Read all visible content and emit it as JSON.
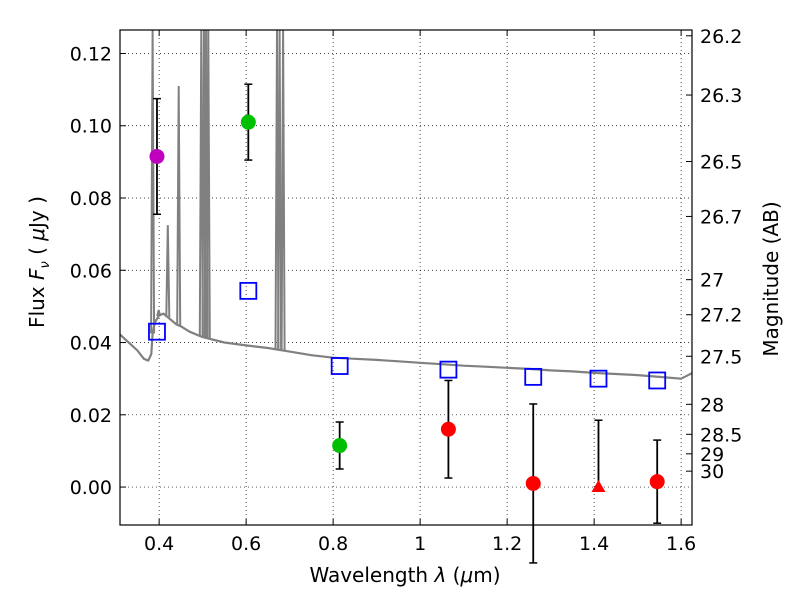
{
  "chart_data": {
    "type": "scatter",
    "title": "",
    "xlabel_prefix": "Wavelength  ",
    "xlabel_symbol": "λ",
    "xlabel_unit_open": " (",
    "xlabel_unit_mu": "μ",
    "xlabel_unit_close": "m)",
    "ylabel_prefix": "Flux  ",
    "ylabel_symbol": "F",
    "ylabel_subscript": "ν",
    "ylabel_unit_open": "  (  ",
    "ylabel_unit_mu": "μ",
    "ylabel_unit_close": "Jy  )",
    "y2label": "Magnitude (AB)",
    "xlim": [
      0.31,
      1.625
    ],
    "ylim": [
      -0.0105,
      0.1265
    ],
    "grid": true,
    "x_ticks": [
      0.4,
      0.6,
      0.8,
      1.0,
      1.2,
      1.4,
      1.6
    ],
    "x_tick_labels": [
      "0.4",
      "0.6",
      "0.8",
      "1",
      "1.2",
      "1.4",
      "1.6"
    ],
    "y_ticks": [
      0.0,
      0.02,
      0.04,
      0.06,
      0.08,
      0.1,
      0.12
    ],
    "y_tick_labels": [
      "0.00",
      "0.02",
      "0.04",
      "0.06",
      "0.08",
      "0.10",
      "0.12"
    ],
    "magnitude_ticks": [
      {
        "value": 0.1249,
        "label": "26.2"
      },
      {
        "value": 0.1085,
        "label": "26.3"
      },
      {
        "value": 0.0901,
        "label": "26.5"
      },
      {
        "value": 0.0749,
        "label": "26.7"
      },
      {
        "value": 0.0574,
        "label": "27"
      },
      {
        "value": 0.0477,
        "label": "27.2"
      },
      {
        "value": 0.0362,
        "label": "27.5"
      },
      {
        "value": 0.0229,
        "label": "28"
      },
      {
        "value": 0.0146,
        "label": "28.5"
      },
      {
        "value": 0.0092,
        "label": "29"
      },
      {
        "value": 0.0044,
        "label": "30"
      }
    ],
    "template_spectrum": {
      "name": "model-sed",
      "color": "#808080",
      "x": [
        0.31,
        0.33,
        0.35,
        0.365,
        0.375,
        0.382,
        0.385,
        0.388,
        0.392,
        0.4,
        0.41,
        0.42,
        0.43,
        0.44,
        0.45,
        0.47,
        0.5,
        0.55,
        0.6,
        0.65,
        0.7,
        0.75,
        0.8,
        0.85,
        0.9,
        0.95,
        1.0,
        1.05,
        1.1,
        1.15,
        1.2,
        1.25,
        1.3,
        1.35,
        1.4,
        1.45,
        1.5,
        1.55,
        1.6,
        1.625
      ],
      "y": [
        0.0422,
        0.04,
        0.0378,
        0.0355,
        0.035,
        0.0368,
        0.0425,
        0.0445,
        0.046,
        0.0475,
        0.048,
        0.047,
        0.046,
        0.045,
        0.0445,
        0.043,
        0.0415,
        0.04,
        0.0392,
        0.0385,
        0.0375,
        0.0365,
        0.0358,
        0.0355,
        0.0352,
        0.0348,
        0.0344,
        0.034,
        0.0336,
        0.0333,
        0.033,
        0.0327,
        0.0323,
        0.032,
        0.0316,
        0.0313,
        0.031,
        0.0305,
        0.03,
        0.0315
      ],
      "emission_lines": [
        {
          "x": 0.385,
          "peak": 0.1265
        },
        {
          "x": 0.399,
          "peak": 0.049
        },
        {
          "x": 0.42,
          "peak": 0.0725
        },
        {
          "x": 0.445,
          "peak": 0.111
        },
        {
          "x": 0.497,
          "peak": 0.1265
        },
        {
          "x": 0.503,
          "peak": 0.1265
        },
        {
          "x": 0.508,
          "peak": 0.1265
        },
        {
          "x": 0.513,
          "peak": 0.1265
        },
        {
          "x": 0.671,
          "peak": 0.1265
        },
        {
          "x": 0.677,
          "peak": 0.1265
        },
        {
          "x": 0.685,
          "peak": 0.1265
        }
      ]
    },
    "model_photometry": {
      "name": "model-bandpass-flux",
      "color": "#0000ff",
      "x": [
        0.395,
        0.605,
        0.815,
        1.065,
        1.26,
        1.41,
        1.545
      ],
      "y": [
        0.043,
        0.0543,
        0.0335,
        0.0325,
        0.0305,
        0.03,
        0.0295
      ]
    },
    "observed_photometry": [
      {
        "name": "purple-band",
        "x": 0.395,
        "y": 0.0915,
        "err_low": 0.016,
        "err_high": 0.016,
        "color": "#bf00bf",
        "marker": "circle"
      },
      {
        "name": "green-band-1",
        "x": 0.605,
        "y": 0.101,
        "err_low": 0.0105,
        "err_high": 0.0105,
        "color": "#00bf00",
        "marker": "circle"
      },
      {
        "name": "green-band-2",
        "x": 0.815,
        "y": 0.0115,
        "err_low": 0.0065,
        "err_high": 0.0065,
        "color": "#00bf00",
        "marker": "circle"
      },
      {
        "name": "red-band-1",
        "x": 1.065,
        "y": 0.016,
        "err_low": 0.0135,
        "err_high": 0.0135,
        "color": "#ff0000",
        "marker": "circle"
      },
      {
        "name": "red-band-2",
        "x": 1.26,
        "y": 0.001,
        "err_low": 0.022,
        "err_high": 0.022,
        "color": "#ff0000",
        "marker": "circle"
      },
      {
        "name": "red-upper-limit",
        "x": 1.41,
        "y": 0.0,
        "err_low": 0.0,
        "err_high": 0.0185,
        "color": "#ff0000",
        "marker": "triangle"
      },
      {
        "name": "red-band-3",
        "x": 1.545,
        "y": 0.0015,
        "err_low": 0.0115,
        "err_high": 0.0115,
        "color": "#ff0000",
        "marker": "circle"
      }
    ]
  }
}
